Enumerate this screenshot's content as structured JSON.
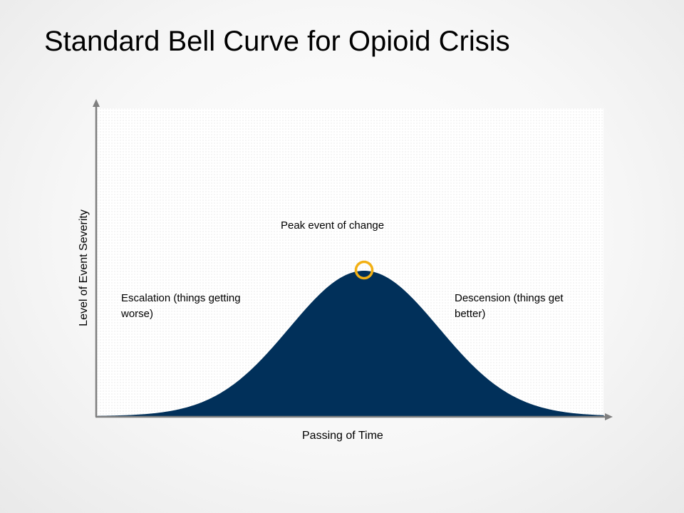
{
  "title": "Standard Bell Curve for Opioid Crisis",
  "labels": {
    "peak": "Peak event of change",
    "escalation": "Escalation (things getting worse)",
    "descension": "Descension (things get better)",
    "x_axis": "Passing of Time",
    "y_axis": "Level of Event Severity"
  },
  "colors": {
    "curve_fill": "#01305a",
    "peak_marker": "#f2b014",
    "axis": "#7f7f7f"
  }
}
